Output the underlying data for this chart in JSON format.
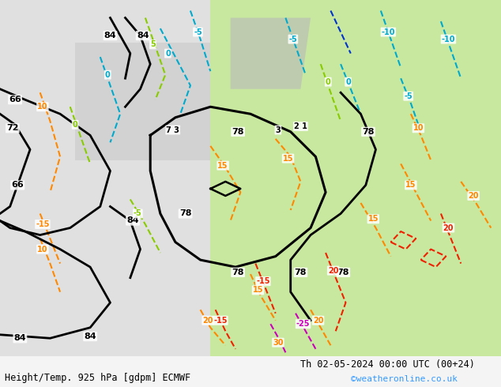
{
  "title_left": "Height/Temp. 925 hPa [gdpm] ECMWF",
  "title_right": "Th 02-05-2024 00:00 UTC (00+24)",
  "watermark": "©weatheronline.co.uk",
  "figsize": [
    6.34,
    4.9
  ],
  "dpi": 100,
  "watermark_color": "#3399ff",
  "orange": "#ff8800",
  "cyan": "#00aacc",
  "ygreen": "#88cc00",
  "red": "#ee2200",
  "magenta": "#cc00bb",
  "blue": "#0033cc"
}
